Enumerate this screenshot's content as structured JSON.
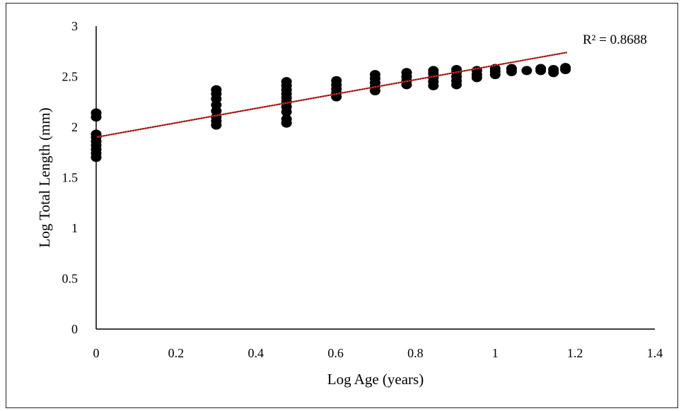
{
  "chart_data": {
    "type": "scatter",
    "title": "",
    "xlabel": "Log Age (years)",
    "ylabel": "Log Total Length (mm)",
    "xlim": [
      0,
      1.4
    ],
    "ylim": [
      0,
      3
    ],
    "x_ticks": [
      "0",
      "0.2",
      "0.4",
      "0.6",
      "0.8",
      "1",
      "1.2",
      "1.4"
    ],
    "y_ticks": [
      "0",
      "0.5",
      "1",
      "1.5",
      "2",
      "2.5",
      "3"
    ],
    "grid": false,
    "legend": "none",
    "marker_color": "#000000",
    "trendline": {
      "type": "linear",
      "color": "#e8322c",
      "x": [
        0,
        1.18
      ],
      "y": [
        1.9,
        2.74
      ],
      "r_squared_label": "R² = 0.8688"
    },
    "series": [
      {
        "points": [
          [
            0,
            1.7
          ],
          [
            0,
            1.74
          ],
          [
            0,
            1.78
          ],
          [
            0,
            1.82
          ],
          [
            0,
            1.86
          ],
          [
            0,
            1.9
          ],
          [
            0,
            1.93
          ],
          [
            0,
            2.1
          ],
          [
            0,
            2.14
          ],
          [
            0.301,
            2.02
          ],
          [
            0.301,
            2.06
          ],
          [
            0.301,
            2.1
          ],
          [
            0.301,
            2.16
          ],
          [
            0.301,
            2.22
          ],
          [
            0.301,
            2.28
          ],
          [
            0.301,
            2.33
          ],
          [
            0.301,
            2.37
          ],
          [
            0.477,
            2.04
          ],
          [
            0.477,
            2.08
          ],
          [
            0.477,
            2.15
          ],
          [
            0.477,
            2.2
          ],
          [
            0.477,
            2.25
          ],
          [
            0.477,
            2.29
          ],
          [
            0.477,
            2.33
          ],
          [
            0.477,
            2.37
          ],
          [
            0.477,
            2.41
          ],
          [
            0.477,
            2.45
          ],
          [
            0.602,
            2.3
          ],
          [
            0.602,
            2.34
          ],
          [
            0.602,
            2.38
          ],
          [
            0.602,
            2.42
          ],
          [
            0.602,
            2.46
          ],
          [
            0.699,
            2.36
          ],
          [
            0.699,
            2.4
          ],
          [
            0.699,
            2.44
          ],
          [
            0.699,
            2.48
          ],
          [
            0.699,
            2.52
          ],
          [
            0.778,
            2.42
          ],
          [
            0.778,
            2.46
          ],
          [
            0.778,
            2.5
          ],
          [
            0.778,
            2.54
          ],
          [
            0.845,
            2.41
          ],
          [
            0.845,
            2.45
          ],
          [
            0.845,
            2.49
          ],
          [
            0.845,
            2.53
          ],
          [
            0.845,
            2.56
          ],
          [
            0.903,
            2.42
          ],
          [
            0.903,
            2.46
          ],
          [
            0.903,
            2.5
          ],
          [
            0.903,
            2.54
          ],
          [
            0.903,
            2.57
          ],
          [
            0.954,
            2.49
          ],
          [
            0.954,
            2.52
          ],
          [
            0.954,
            2.56
          ],
          [
            1.0,
            2.52
          ],
          [
            1.0,
            2.55
          ],
          [
            1.0,
            2.58
          ],
          [
            1.041,
            2.55
          ],
          [
            1.041,
            2.58
          ],
          [
            1.079,
            2.56
          ],
          [
            1.114,
            2.56
          ],
          [
            1.114,
            2.58
          ],
          [
            1.146,
            2.54
          ],
          [
            1.146,
            2.57
          ],
          [
            1.176,
            2.57
          ],
          [
            1.176,
            2.59
          ]
        ]
      }
    ]
  }
}
